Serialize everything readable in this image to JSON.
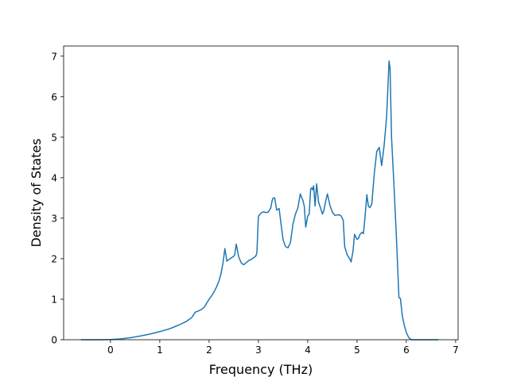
{
  "chart_data": {
    "type": "line",
    "title": "",
    "xlabel": "Frequency (THz)",
    "ylabel": "Density of States",
    "xlim": [
      -0.95,
      7.05
    ],
    "ylim": [
      0,
      7.25
    ],
    "xticks": [
      0,
      1,
      2,
      3,
      4,
      5,
      6,
      7
    ],
    "yticks": [
      0,
      1,
      2,
      3,
      4,
      5,
      6,
      7
    ],
    "grid": false,
    "series": [
      {
        "color": "#1f77b4",
        "x": [
          -0.6,
          -0.4,
          -0.2,
          0.0,
          0.2,
          0.4,
          0.6,
          0.8,
          1.0,
          1.2,
          1.4,
          1.55,
          1.65,
          1.72,
          1.8,
          1.85,
          1.9,
          1.95,
          2.0,
          2.05,
          2.1,
          2.15,
          2.2,
          2.24,
          2.28,
          2.32,
          2.36,
          2.4,
          2.45,
          2.5,
          2.52,
          2.55,
          2.6,
          2.65,
          2.7,
          2.75,
          2.8,
          2.85,
          2.9,
          2.95,
          2.97,
          3.0,
          3.05,
          3.1,
          3.15,
          3.2,
          3.25,
          3.28,
          3.3,
          3.33,
          3.37,
          3.42,
          3.46,
          3.5,
          3.55,
          3.6,
          3.65,
          3.7,
          3.75,
          3.8,
          3.85,
          3.88,
          3.9,
          3.93,
          3.96,
          4.0,
          4.03,
          4.06,
          4.08,
          4.1,
          4.12,
          4.15,
          4.18,
          4.22,
          4.26,
          4.3,
          4.33,
          4.36,
          4.4,
          4.45,
          4.5,
          4.55,
          4.6,
          4.65,
          4.68,
          4.72,
          4.75,
          4.8,
          4.85,
          4.88,
          4.92,
          4.95,
          5.0,
          5.03,
          5.06,
          5.1,
          5.13,
          5.16,
          5.2,
          5.23,
          5.26,
          5.3,
          5.35,
          5.4,
          5.45,
          5.5,
          5.55,
          5.6,
          5.65,
          5.67,
          5.7,
          5.75,
          5.8,
          5.85,
          5.88,
          5.92,
          5.96,
          6.0,
          6.05,
          6.1,
          6.2,
          6.4,
          6.65
        ],
        "y": [
          0.0,
          0.0,
          0.0,
          0.005,
          0.02,
          0.05,
          0.09,
          0.14,
          0.2,
          0.27,
          0.37,
          0.46,
          0.55,
          0.68,
          0.72,
          0.75,
          0.8,
          0.9,
          1.0,
          1.08,
          1.18,
          1.3,
          1.45,
          1.62,
          1.88,
          2.25,
          1.94,
          1.98,
          2.02,
          2.06,
          2.1,
          2.36,
          2.05,
          1.9,
          1.85,
          1.9,
          1.95,
          1.98,
          2.02,
          2.07,
          2.15,
          3.05,
          3.12,
          3.16,
          3.14,
          3.15,
          3.25,
          3.44,
          3.5,
          3.5,
          3.2,
          3.24,
          2.85,
          2.47,
          2.3,
          2.27,
          2.4,
          2.85,
          3.1,
          3.25,
          3.6,
          3.5,
          3.45,
          3.3,
          2.78,
          3.05,
          3.1,
          3.72,
          3.75,
          3.7,
          3.8,
          3.3,
          3.85,
          3.4,
          3.25,
          3.1,
          3.2,
          3.4,
          3.6,
          3.32,
          3.15,
          3.07,
          3.08,
          3.08,
          3.05,
          2.95,
          2.3,
          2.1,
          2.0,
          1.92,
          2.2,
          2.6,
          2.48,
          2.5,
          2.6,
          2.65,
          2.62,
          3.0,
          3.58,
          3.3,
          3.26,
          3.35,
          4.1,
          4.65,
          4.75,
          4.3,
          4.8,
          5.5,
          6.88,
          6.7,
          5.0,
          3.8,
          2.5,
          1.04,
          1.02,
          0.58,
          0.35,
          0.18,
          0.05,
          0.0,
          0.0,
          0.0,
          0.0
        ]
      }
    ]
  }
}
